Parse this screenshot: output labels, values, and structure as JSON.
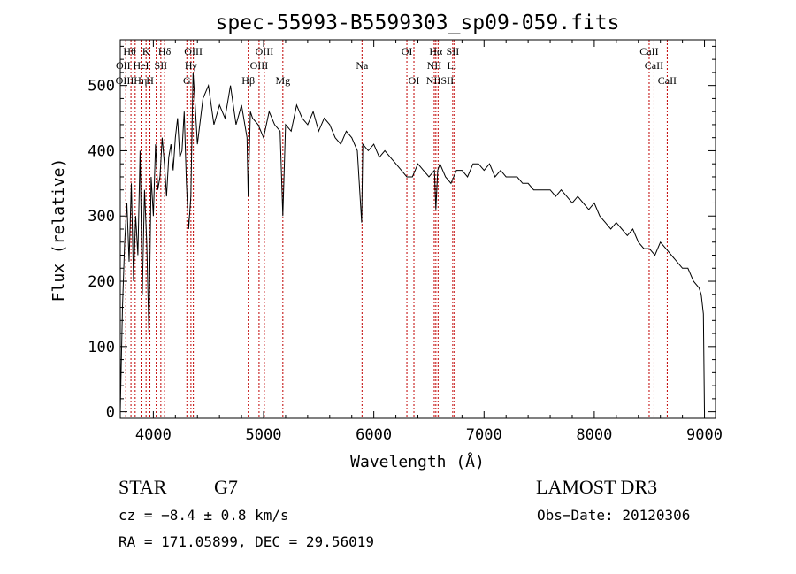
{
  "chart_data": {
    "type": "line",
    "title": "spec-55993-B5599303_sp09-059.fits",
    "xlabel": "Wavelength (Å)",
    "ylabel": "Flux (relative)",
    "xlim": [
      3700,
      9100
    ],
    "ylim": [
      -10,
      570
    ],
    "xticks": [
      4000,
      5000,
      6000,
      7000,
      8000,
      9000
    ],
    "yticks": [
      0,
      100,
      200,
      300,
      400,
      500
    ],
    "series": [
      {
        "name": "flux",
        "x": [
          3700,
          3720,
          3740,
          3760,
          3780,
          3800,
          3820,
          3840,
          3860,
          3880,
          3900,
          3920,
          3940,
          3960,
          3980,
          4000,
          4020,
          4040,
          4060,
          4080,
          4100,
          4120,
          4140,
          4160,
          4180,
          4200,
          4220,
          4240,
          4260,
          4280,
          4300,
          4320,
          4340,
          4360,
          4380,
          4400,
          4450,
          4500,
          4550,
          4600,
          4650,
          4700,
          4750,
          4800,
          4850,
          4860,
          4880,
          4900,
          4950,
          5000,
          5050,
          5100,
          5150,
          5175,
          5200,
          5250,
          5300,
          5350,
          5400,
          5450,
          5500,
          5550,
          5600,
          5650,
          5700,
          5750,
          5800,
          5850,
          5890,
          5900,
          5950,
          6000,
          6050,
          6100,
          6150,
          6200,
          6250,
          6300,
          6350,
          6400,
          6450,
          6500,
          6550,
          6563,
          6580,
          6600,
          6650,
          6700,
          6750,
          6800,
          6850,
          6900,
          6950,
          7000,
          7050,
          7100,
          7150,
          7200,
          7250,
          7300,
          7350,
          7400,
          7450,
          7500,
          7550,
          7600,
          7650,
          7700,
          7750,
          7800,
          7850,
          7900,
          7950,
          8000,
          8050,
          8100,
          8150,
          8200,
          8250,
          8300,
          8350,
          8400,
          8450,
          8500,
          8550,
          8600,
          8650,
          8700,
          8750,
          8800,
          8850,
          8900,
          8950,
          8970,
          8990,
          9000
        ],
        "y": [
          0,
          160,
          260,
          320,
          230,
          350,
          200,
          300,
          240,
          400,
          180,
          340,
          260,
          120,
          360,
          300,
          410,
          340,
          360,
          420,
          380,
          330,
          390,
          410,
          370,
          420,
          450,
          390,
          400,
          460,
          350,
          280,
          330,
          520,
          470,
          410,
          480,
          500,
          440,
          470,
          450,
          500,
          440,
          470,
          420,
          330,
          460,
          450,
          440,
          420,
          460,
          440,
          430,
          300,
          440,
          430,
          470,
          450,
          440,
          460,
          430,
          450,
          440,
          420,
          410,
          430,
          420,
          400,
          290,
          410,
          400,
          410,
          390,
          400,
          390,
          380,
          370,
          360,
          360,
          380,
          370,
          360,
          370,
          310,
          370,
          380,
          360,
          350,
          370,
          370,
          360,
          380,
          380,
          370,
          380,
          360,
          370,
          360,
          360,
          360,
          350,
          350,
          340,
          340,
          340,
          340,
          330,
          340,
          330,
          320,
          330,
          320,
          310,
          320,
          300,
          290,
          280,
          290,
          280,
          270,
          280,
          260,
          250,
          250,
          240,
          260,
          250,
          240,
          230,
          220,
          220,
          200,
          190,
          180,
          150,
          0
        ]
      }
    ],
    "lines": {
      "xs": [
        3750,
        3797,
        3835,
        3889,
        3934,
        3969,
        4026,
        4068,
        4102,
        4304,
        4341,
        4363,
        4861,
        4959,
        5007,
        5175,
        5893,
        6300,
        6364,
        6548,
        6563,
        6583,
        6716,
        6731,
        8498,
        8542,
        8662
      ],
      "labels": [
        {
          "text": "Hθ",
          "x": 3785,
          "row": 0
        },
        {
          "text": "K",
          "x": 3934,
          "row": 0
        },
        {
          "text": "Hδ",
          "x": 4102,
          "row": 0
        },
        {
          "text": "OIII",
          "x": 4363,
          "row": 0
        },
        {
          "text": "OIII",
          "x": 5007,
          "row": 0
        },
        {
          "text": "OI",
          "x": 6300,
          "row": 0
        },
        {
          "text": "Hα",
          "x": 6563,
          "row": 0
        },
        {
          "text": "SII",
          "x": 6716,
          "row": 0
        },
        {
          "text": "CaII",
          "x": 8498,
          "row": 0
        },
        {
          "text": "OII",
          "x": 3727,
          "row": 1
        },
        {
          "text": "HeI",
          "x": 3889,
          "row": 1
        },
        {
          "text": "SII",
          "x": 4068,
          "row": 1
        },
        {
          "text": "Hγ",
          "x": 4341,
          "row": 1
        },
        {
          "text": "OIII",
          "x": 4959,
          "row": 1
        },
        {
          "text": "Na",
          "x": 5893,
          "row": 1
        },
        {
          "text": "NII",
          "x": 6548,
          "row": 1
        },
        {
          "text": "Li",
          "x": 6708,
          "row": 1
        },
        {
          "text": "CaII",
          "x": 8542,
          "row": 1
        },
        {
          "text": "OIIIHη",
          "x": 3800,
          "row": 2
        },
        {
          "text": "H",
          "x": 3969,
          "row": 2
        },
        {
          "text": "G",
          "x": 4304,
          "row": 2
        },
        {
          "text": "Hβ",
          "x": 4861,
          "row": 2
        },
        {
          "text": "Mg",
          "x": 5175,
          "row": 2
        },
        {
          "text": "OI",
          "x": 6364,
          "row": 2
        },
        {
          "text": "NIISII",
          "x": 6600,
          "row": 2
        },
        {
          "text": "CaII",
          "x": 8662,
          "row": 2
        }
      ]
    }
  },
  "info": {
    "object_class": "STAR",
    "subclass": "G7",
    "survey": "LAMOST DR3",
    "cz": "cz = −8.4 ± 0.8 km/s",
    "obs_date": "Obs−Date: 20120306",
    "coords": "RA = 171.05899, DEC =  29.56019"
  }
}
